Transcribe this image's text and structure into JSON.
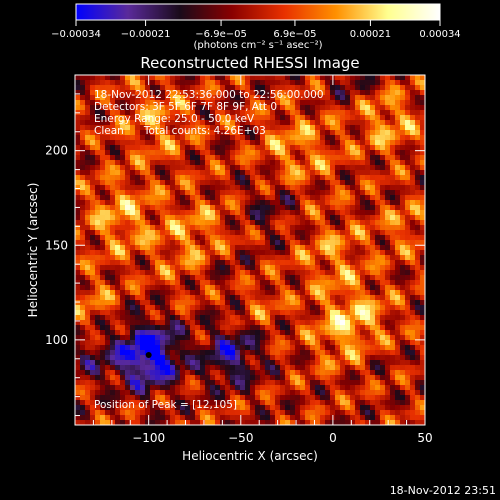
{
  "chart_data": {
    "type": "heatmap",
    "title": "Reconstructed RHESSI Image",
    "xlabel": "Heliocentric X (arcsec)",
    "ylabel": "Heliocentric Y (arcsec)",
    "xlim": [
      -140,
      50
    ],
    "ylim": [
      55,
      240
    ],
    "x_ticks": [
      -100,
      -50,
      0,
      50
    ],
    "y_ticks": [
      100,
      150,
      200
    ],
    "x_tick_labels": [
      "−100",
      "−50",
      "0",
      "50"
    ],
    "y_tick_labels": [
      "100",
      "150",
      "200"
    ],
    "colorbar": {
      "range": [
        -0.00034,
        0.00034
      ],
      "tick_values": [
        -0.00034,
        -0.00021,
        -6.9e-05,
        6.9e-05,
        0.00021,
        0.00034
      ],
      "tick_labels": [
        "−0.00034",
        "−0.00021",
        "−6.9e−05",
        "6.9e−05",
        "0.00021",
        "0.00034"
      ],
      "units_label": "(photons cm⁻² s⁻¹ asec⁻²)",
      "colors": [
        "#0000ff",
        "#5a2a9a",
        "#1a0a1a",
        "#8a0000",
        "#e83000",
        "#ff9000",
        "#ffff90",
        "#ffffff"
      ]
    },
    "annotations": [
      "18-Nov-2012 22:53:36.000 to 22:56:00.000",
      "Detectors: 3F 5F 6F 7F 8F 9F, Att 0",
      "Energy Range: 25.0 - 50.0 keV",
      "Clean      Total counts: 4.26E+03"
    ],
    "peak_label": "Position of Peak = [12,105]",
    "peak_position": [
      12,
      105
    ],
    "min_position": [
      -100,
      92
    ],
    "grid": false
  },
  "footer_timestamp": "18-Nov-2012 23:51"
}
